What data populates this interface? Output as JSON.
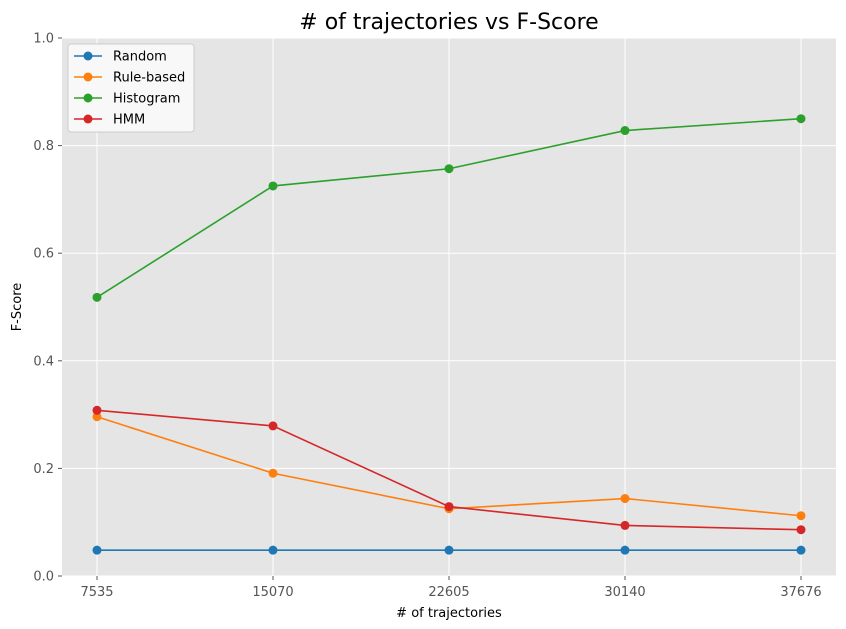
{
  "chart_data": {
    "type": "line",
    "title": "# of trajectories vs F-Score",
    "xlabel": "# of trajectories",
    "ylabel": "F-Score",
    "ylim": [
      0,
      1.0
    ],
    "grid": true,
    "legend_position": "top-left",
    "categories": [
      "7535",
      "15070",
      "22605",
      "30140",
      "37676"
    ],
    "y_ticks": [
      "0.0",
      "0.2",
      "0.4",
      "0.6",
      "0.8",
      "1.0"
    ],
    "series": [
      {
        "name": "Random",
        "color": "#1f77b4",
        "values": [
          0.048,
          0.048,
          0.048,
          0.048,
          0.048
        ]
      },
      {
        "name": "Rule-based",
        "color": "#ff7f0e",
        "values": [
          0.296,
          0.191,
          0.125,
          0.144,
          0.112
        ]
      },
      {
        "name": "Histogram",
        "color": "#2ca02c",
        "values": [
          0.518,
          0.725,
          0.757,
          0.828,
          0.85
        ]
      },
      {
        "name": "HMM",
        "color": "#d62728",
        "values": [
          0.308,
          0.279,
          0.129,
          0.094,
          0.086
        ]
      }
    ]
  }
}
